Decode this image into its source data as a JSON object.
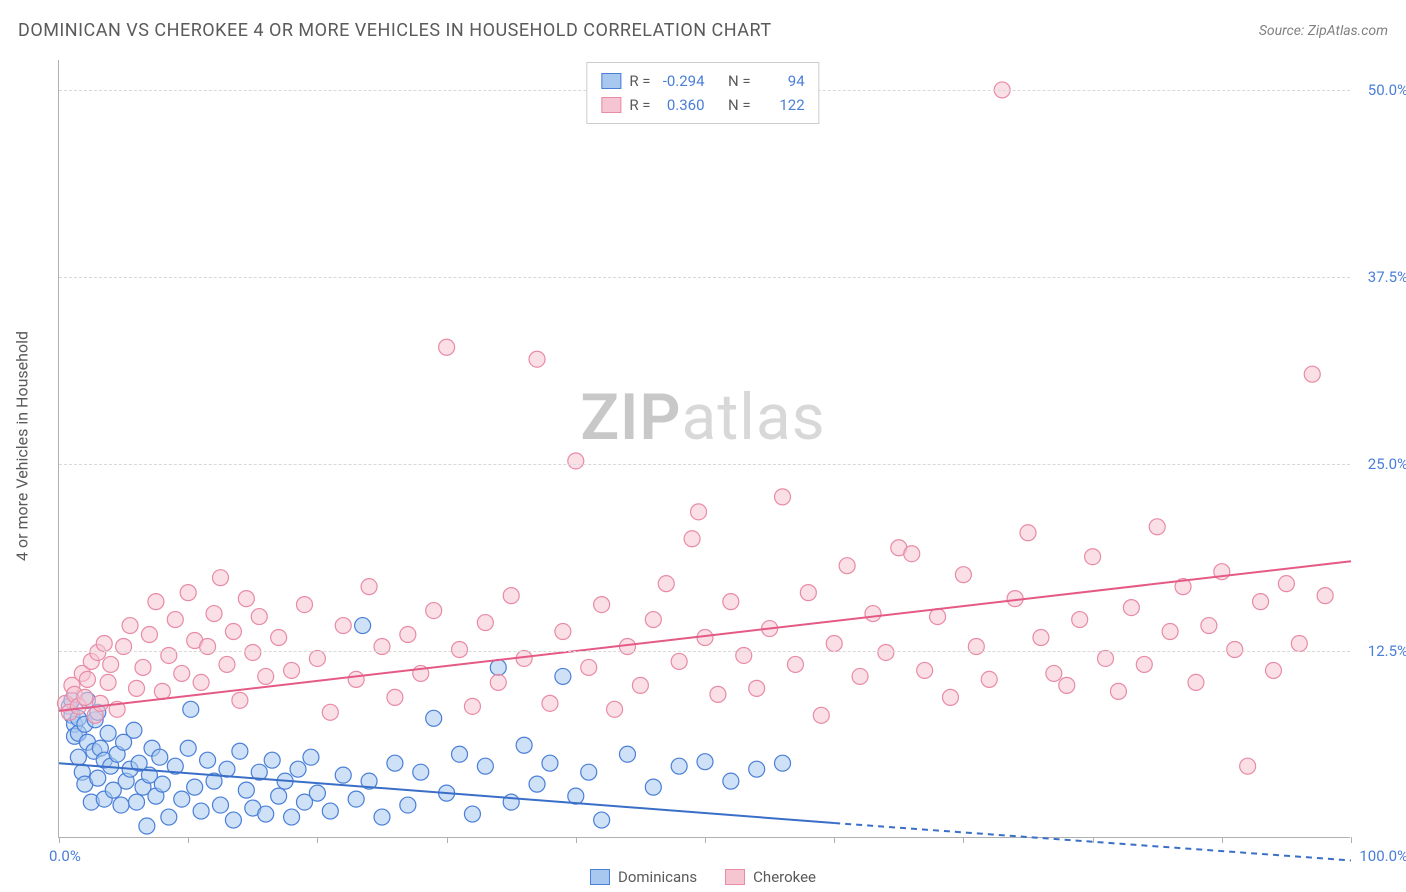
{
  "title": "DOMINICAN VS CHEROKEE 4 OR MORE VEHICLES IN HOUSEHOLD CORRELATION CHART",
  "source_label": "Source: ",
  "source_value": "ZipAtlas.com",
  "ylabel": "4 or more Vehicles in Household",
  "watermark_a": "ZIP",
  "watermark_b": "atlas",
  "chart": {
    "type": "scatter",
    "xlim": [
      0,
      100
    ],
    "ylim": [
      0,
      52
    ],
    "ytick_values": [
      12.5,
      25.0,
      37.5,
      50.0
    ],
    "ytick_labels": [
      "12.5%",
      "25.0%",
      "37.5%",
      "50.0%"
    ],
    "xtick_min": "0.0%",
    "xtick_max": "100.0%",
    "xtick_marks": [
      0,
      10,
      20,
      30,
      40,
      50,
      60,
      70,
      80,
      90,
      100
    ],
    "background_color": "#ffffff",
    "grid_color": "#d8d8d8",
    "axis_color": "#b0b0b0",
    "tick_label_color": "#4a7fd8",
    "marker_radius": 8,
    "marker_opacity": 0.55,
    "series": [
      {
        "name": "Dominicans",
        "color_fill": "#a8c8ef",
        "color_stroke": "#4a7fd8",
        "stats": {
          "R_label": "R =",
          "R": "-0.294",
          "N_label": "N =",
          "N": "94"
        },
        "trend": {
          "x1": 0,
          "y1": 5.0,
          "x2": 60,
          "y2": 1.0,
          "x2_ext": 100,
          "y2_ext": -1.5,
          "color": "#3a6fc8",
          "width": 2
        },
        "points": [
          [
            0.8,
            8.8
          ],
          [
            1.0,
            8.2
          ],
          [
            1.0,
            9.2
          ],
          [
            1.2,
            7.6
          ],
          [
            1.2,
            6.8
          ],
          [
            1.5,
            7.0
          ],
          [
            1.5,
            8.0
          ],
          [
            1.5,
            5.4
          ],
          [
            1.8,
            4.4
          ],
          [
            2.0,
            7.6
          ],
          [
            2.0,
            3.6
          ],
          [
            2.2,
            6.4
          ],
          [
            2.2,
            9.2
          ],
          [
            2.5,
            2.4
          ],
          [
            2.7,
            5.8
          ],
          [
            2.8,
            7.9
          ],
          [
            3.0,
            4.0
          ],
          [
            3.0,
            8.4
          ],
          [
            3.2,
            6.0
          ],
          [
            3.5,
            2.6
          ],
          [
            3.5,
            5.2
          ],
          [
            3.8,
            7.0
          ],
          [
            4.0,
            4.8
          ],
          [
            4.2,
            3.2
          ],
          [
            4.5,
            5.6
          ],
          [
            4.8,
            2.2
          ],
          [
            5.0,
            6.4
          ],
          [
            5.2,
            3.8
          ],
          [
            5.5,
            4.6
          ],
          [
            5.8,
            7.2
          ],
          [
            6.0,
            2.4
          ],
          [
            6.2,
            5.0
          ],
          [
            6.5,
            3.4
          ],
          [
            6.8,
            0.8
          ],
          [
            7.0,
            4.2
          ],
          [
            7.2,
            6.0
          ],
          [
            7.5,
            2.8
          ],
          [
            7.8,
            5.4
          ],
          [
            8.0,
            3.6
          ],
          [
            8.5,
            1.4
          ],
          [
            9.0,
            4.8
          ],
          [
            9.5,
            2.6
          ],
          [
            10.0,
            6.0
          ],
          [
            10.2,
            8.6
          ],
          [
            10.5,
            3.4
          ],
          [
            11.0,
            1.8
          ],
          [
            11.5,
            5.2
          ],
          [
            12.0,
            3.8
          ],
          [
            12.5,
            2.2
          ],
          [
            13.0,
            4.6
          ],
          [
            13.5,
            1.2
          ],
          [
            14.0,
            5.8
          ],
          [
            14.5,
            3.2
          ],
          [
            15.0,
            2.0
          ],
          [
            15.5,
            4.4
          ],
          [
            16.0,
            1.6
          ],
          [
            16.5,
            5.2
          ],
          [
            17.0,
            2.8
          ],
          [
            17.5,
            3.8
          ],
          [
            18.0,
            1.4
          ],
          [
            18.5,
            4.6
          ],
          [
            19.0,
            2.4
          ],
          [
            19.5,
            5.4
          ],
          [
            20.0,
            3.0
          ],
          [
            21.0,
            1.8
          ],
          [
            22.0,
            4.2
          ],
          [
            23.0,
            2.6
          ],
          [
            23.5,
            14.2
          ],
          [
            24.0,
            3.8
          ],
          [
            25.0,
            1.4
          ],
          [
            26.0,
            5.0
          ],
          [
            27.0,
            2.2
          ],
          [
            28.0,
            4.4
          ],
          [
            29.0,
            8.0
          ],
          [
            30.0,
            3.0
          ],
          [
            31.0,
            5.6
          ],
          [
            32.0,
            1.6
          ],
          [
            33.0,
            4.8
          ],
          [
            34.0,
            11.4
          ],
          [
            35.0,
            2.4
          ],
          [
            36.0,
            6.2
          ],
          [
            37.0,
            3.6
          ],
          [
            38.0,
            5.0
          ],
          [
            39.0,
            10.8
          ],
          [
            40.0,
            2.8
          ],
          [
            41.0,
            4.4
          ],
          [
            42.0,
            1.2
          ],
          [
            44.0,
            5.6
          ],
          [
            46.0,
            3.4
          ],
          [
            48.0,
            4.8
          ],
          [
            50.0,
            5.1
          ],
          [
            52.0,
            3.8
          ],
          [
            54.0,
            4.6
          ],
          [
            56.0,
            5.0
          ]
        ]
      },
      {
        "name": "Cherokee",
        "color_fill": "#f5c5d2",
        "color_stroke": "#e88ba5",
        "stats": {
          "R_label": "R =",
          "R": "0.360",
          "N_label": "N =",
          "N": "122"
        },
        "trend": {
          "x1": 0,
          "y1": 8.5,
          "x2": 100,
          "y2": 18.5,
          "color": "#e45a85",
          "width": 2
        },
        "points": [
          [
            0.5,
            9.0
          ],
          [
            0.8,
            8.4
          ],
          [
            1.0,
            10.2
          ],
          [
            1.2,
            9.6
          ],
          [
            1.5,
            8.8
          ],
          [
            1.8,
            11.0
          ],
          [
            2.0,
            9.4
          ],
          [
            2.2,
            10.6
          ],
          [
            2.5,
            11.8
          ],
          [
            2.8,
            8.2
          ],
          [
            3.0,
            12.4
          ],
          [
            3.2,
            9.0
          ],
          [
            3.5,
            13.0
          ],
          [
            3.8,
            10.4
          ],
          [
            4.0,
            11.6
          ],
          [
            4.5,
            8.6
          ],
          [
            5.0,
            12.8
          ],
          [
            5.5,
            14.2
          ],
          [
            6.0,
            10.0
          ],
          [
            6.5,
            11.4
          ],
          [
            7.0,
            13.6
          ],
          [
            7.5,
            15.8
          ],
          [
            8.0,
            9.8
          ],
          [
            8.5,
            12.2
          ],
          [
            9.0,
            14.6
          ],
          [
            9.5,
            11.0
          ],
          [
            10.0,
            16.4
          ],
          [
            10.5,
            13.2
          ],
          [
            11.0,
            10.4
          ],
          [
            11.5,
            12.8
          ],
          [
            12.0,
            15.0
          ],
          [
            12.5,
            17.4
          ],
          [
            13.0,
            11.6
          ],
          [
            13.5,
            13.8
          ],
          [
            14.0,
            9.2
          ],
          [
            14.5,
            16.0
          ],
          [
            15.0,
            12.4
          ],
          [
            15.5,
            14.8
          ],
          [
            16.0,
            10.8
          ],
          [
            17.0,
            13.4
          ],
          [
            18.0,
            11.2
          ],
          [
            19.0,
            15.6
          ],
          [
            20.0,
            12.0
          ],
          [
            21.0,
            8.4
          ],
          [
            22.0,
            14.2
          ],
          [
            23.0,
            10.6
          ],
          [
            24.0,
            16.8
          ],
          [
            25.0,
            12.8
          ],
          [
            26.0,
            9.4
          ],
          [
            27.0,
            13.6
          ],
          [
            28.0,
            11.0
          ],
          [
            29.0,
            15.2
          ],
          [
            30.0,
            32.8
          ],
          [
            31.0,
            12.6
          ],
          [
            32.0,
            8.8
          ],
          [
            33.0,
            14.4
          ],
          [
            34.0,
            10.4
          ],
          [
            35.0,
            16.2
          ],
          [
            36.0,
            12.0
          ],
          [
            37.0,
            32.0
          ],
          [
            38.0,
            9.0
          ],
          [
            39.0,
            13.8
          ],
          [
            40.0,
            25.2
          ],
          [
            41.0,
            11.4
          ],
          [
            42.0,
            15.6
          ],
          [
            43.0,
            8.6
          ],
          [
            44.0,
            12.8
          ],
          [
            45.0,
            10.2
          ],
          [
            46.0,
            14.6
          ],
          [
            47.0,
            17.0
          ],
          [
            48.0,
            11.8
          ],
          [
            49.0,
            20.0
          ],
          [
            49.5,
            21.8
          ],
          [
            50.0,
            13.4
          ],
          [
            51.0,
            9.6
          ],
          [
            52.0,
            15.8
          ],
          [
            53.0,
            12.2
          ],
          [
            54.0,
            10.0
          ],
          [
            55.0,
            14.0
          ],
          [
            56.0,
            22.8
          ],
          [
            57.0,
            11.6
          ],
          [
            58.0,
            16.4
          ],
          [
            59.0,
            8.2
          ],
          [
            60.0,
            13.0
          ],
          [
            61.0,
            18.2
          ],
          [
            62.0,
            10.8
          ],
          [
            63.0,
            15.0
          ],
          [
            64.0,
            12.4
          ],
          [
            65.0,
            19.4
          ],
          [
            66.0,
            19.0
          ],
          [
            67.0,
            11.2
          ],
          [
            68.0,
            14.8
          ],
          [
            69.0,
            9.4
          ],
          [
            70.0,
            17.6
          ],
          [
            71.0,
            12.8
          ],
          [
            72.0,
            10.6
          ],
          [
            73.0,
            50.0
          ],
          [
            74.0,
            16.0
          ],
          [
            75.0,
            20.4
          ],
          [
            76.0,
            13.4
          ],
          [
            77.0,
            11.0
          ],
          [
            78.0,
            10.2
          ],
          [
            79.0,
            14.6
          ],
          [
            80.0,
            18.8
          ],
          [
            81.0,
            12.0
          ],
          [
            82.0,
            9.8
          ],
          [
            83.0,
            15.4
          ],
          [
            84.0,
            11.6
          ],
          [
            85.0,
            20.8
          ],
          [
            86.0,
            13.8
          ],
          [
            87.0,
            16.8
          ],
          [
            88.0,
            10.4
          ],
          [
            89.0,
            14.2
          ],
          [
            90.0,
            17.8
          ],
          [
            91.0,
            12.6
          ],
          [
            92.0,
            4.8
          ],
          [
            93.0,
            15.8
          ],
          [
            94.0,
            11.2
          ],
          [
            95.0,
            17.0
          ],
          [
            96.0,
            13.0
          ],
          [
            97.0,
            31.0
          ],
          [
            98.0,
            16.2
          ]
        ]
      }
    ]
  },
  "legend": [
    {
      "label": "Dominicans",
      "fill": "#a8c8ef",
      "stroke": "#4a7fd8"
    },
    {
      "label": "Cherokee",
      "fill": "#f5c5d2",
      "stroke": "#e88ba5"
    }
  ]
}
